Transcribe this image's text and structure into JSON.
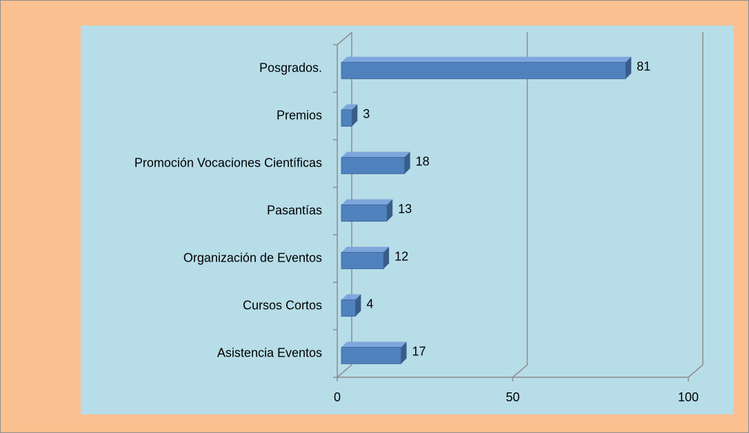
{
  "chart_data": {
    "type": "bar",
    "orientation": "horizontal",
    "categories": [
      "Posgrados.",
      "Premios",
      "Promoción Vocaciones Científicas",
      "Pasantías",
      "Organización de Eventos",
      "Cursos Cortos",
      "Asistencia Eventos"
    ],
    "values": [
      81,
      3,
      18,
      13,
      12,
      4,
      17
    ],
    "color": "#4f81bd",
    "xlim": [
      0,
      100
    ],
    "xticks": [
      0,
      50,
      100
    ],
    "grid": true
  }
}
